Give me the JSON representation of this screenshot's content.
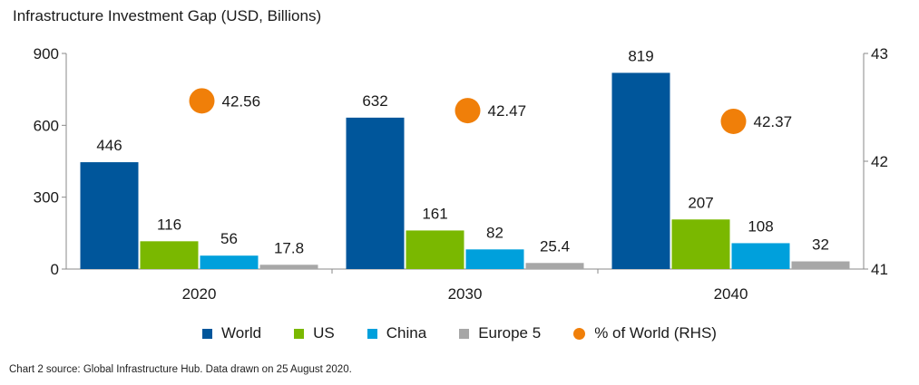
{
  "chart_data": {
    "type": "bar",
    "title": "Infrastructure Investment Gap (USD, Billions)",
    "categories": [
      "2020",
      "2030",
      "2040"
    ],
    "series": [
      {
        "name": "World",
        "values": [
          446,
          632,
          819
        ],
        "color": "#00569b"
      },
      {
        "name": "US",
        "values": [
          116,
          161,
          207
        ],
        "color": "#7ab800"
      },
      {
        "name": "China",
        "values": [
          56,
          82,
          108
        ],
        "color": "#00a0dc"
      },
      {
        "name": "Europe 5",
        "values": [
          17.8,
          25.4,
          32
        ],
        "color": "#a7a7a7"
      }
    ],
    "secondary_series": {
      "name": "% of World (RHS)",
      "type": "scatter",
      "values": [
        42.56,
        42.47,
        42.37
      ],
      "color": "#f07f09"
    },
    "ylim": [
      0,
      900
    ],
    "yticks": [
      0,
      300,
      600,
      900
    ],
    "y2lim": [
      41,
      43
    ],
    "y2ticks": [
      41,
      42,
      43
    ],
    "legend_position": "bottom"
  },
  "footer": {
    "source": "Chart 2 source: Global Infrastructure Hub. Data drawn on 25 August 2020."
  }
}
